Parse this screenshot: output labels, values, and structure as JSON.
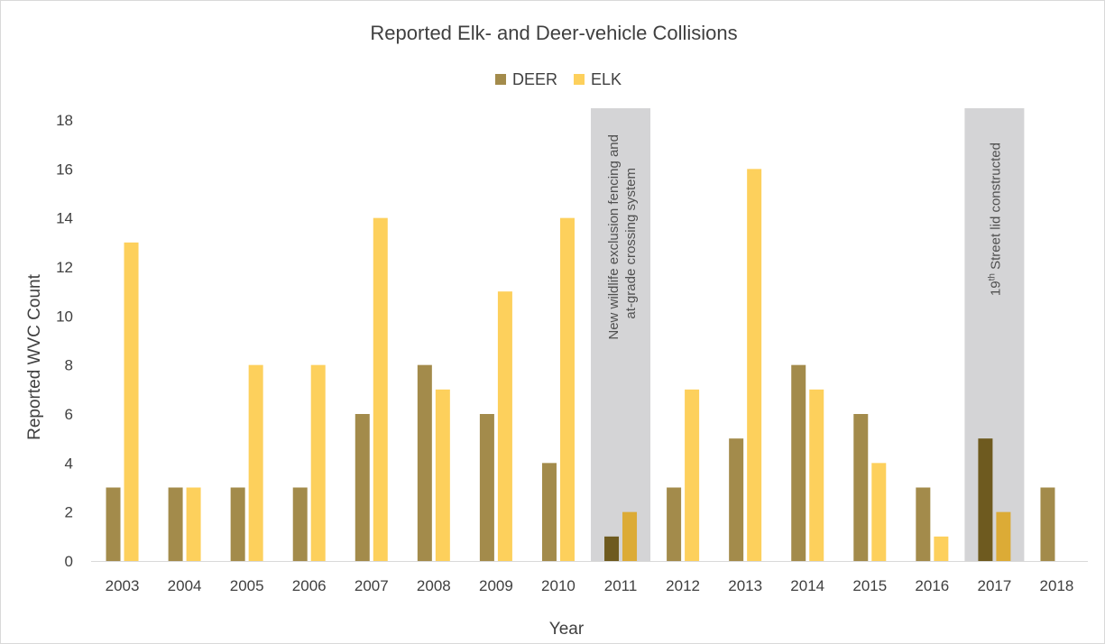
{
  "chart_data": {
    "type": "bar",
    "title": "Reported Elk- and Deer-vehicle Collisions",
    "xlabel": "Year",
    "ylabel": "Reported WVC Count",
    "ylim": [
      0,
      18
    ],
    "yticks": [
      0,
      2,
      4,
      6,
      8,
      10,
      12,
      14,
      16,
      18
    ],
    "grid": false,
    "legend_position": "top-center",
    "categories": [
      "2003",
      "2004",
      "2005",
      "2006",
      "2007",
      "2008",
      "2009",
      "2010",
      "2011",
      "2012",
      "2013",
      "2014",
      "2015",
      "2016",
      "2017",
      "2018"
    ],
    "series": [
      {
        "name": "DEER",
        "color": "#a38b4b",
        "highlight_color": "#6e5a1f",
        "values": [
          3,
          3,
          3,
          3,
          6,
          8,
          6,
          4,
          1,
          3,
          5,
          8,
          6,
          3,
          5,
          3
        ]
      },
      {
        "name": "ELK",
        "color": "#fdd05c",
        "highlight_color": "#dcab36",
        "values": [
          13,
          3,
          8,
          8,
          14,
          7,
          11,
          14,
          2,
          7,
          16,
          7,
          4,
          1,
          2,
          null
        ]
      }
    ],
    "highlight_color_band": "#d4d4d6",
    "annotations": [
      {
        "category": "2011",
        "line1": "New wildlife exclusion fencing and",
        "line2": "at-grade crossing system"
      },
      {
        "category": "2017",
        "prefix": "19",
        "superscript": "th",
        "suffix": " Street lid constructed"
      }
    ]
  }
}
